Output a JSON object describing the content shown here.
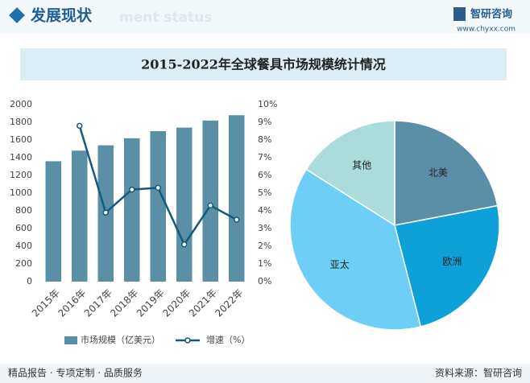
{
  "header": {
    "title": "发展现状",
    "ghost": "ment status",
    "brand": "智研咨询",
    "site": "www.chyxx.com"
  },
  "banner": "2015-2022年全球餐具市场规模统计情况",
  "chart_data": [
    {
      "type": "bar",
      "categories": [
        "2015年",
        "2016年",
        "2017年",
        "2018年",
        "2019年",
        "2020年",
        "2021年",
        "2022年"
      ],
      "series": [
        {
          "name": "市场规模（亿美元）",
          "color": "#5b8fa7",
          "values": [
            1360,
            1480,
            1540,
            1620,
            1700,
            1740,
            1820,
            1880
          ]
        },
        {
          "name": "增速（%）",
          "color": "#145a7a",
          "type": "line",
          "axis": "y2",
          "values": [
            null,
            8.8,
            3.9,
            5.2,
            5.3,
            2.1,
            4.3,
            3.5
          ]
        }
      ],
      "ylim": [
        0,
        2000
      ],
      "yticks": [
        0,
        200,
        400,
        600,
        800,
        1000,
        1200,
        1400,
        1600,
        1800,
        2000
      ],
      "y2lim": [
        0,
        10
      ],
      "y2ticks": [
        {
          "value": 0,
          "label": "0%"
        },
        {
          "value": 1,
          "label": "1%"
        },
        {
          "value": 2,
          "label": "2%"
        },
        {
          "value": 3,
          "label": "3%"
        },
        {
          "value": 4,
          "label": "4%"
        },
        {
          "value": 5,
          "label": "5%"
        },
        {
          "value": 6,
          "label": "6%"
        },
        {
          "value": 7,
          "label": "7%"
        },
        {
          "value": 8,
          "label": "8%"
        },
        {
          "value": 9,
          "label": "9%"
        },
        {
          "value": 10,
          "label": "10%"
        }
      ],
      "legend": "bottom"
    },
    {
      "type": "pie",
      "categories": [
        "北美",
        "欧洲",
        "亚太",
        "其他"
      ],
      "values": [
        22,
        24,
        38,
        16
      ],
      "colors": [
        "#5b8fa7",
        "#0ea0d8",
        "#6dcff5",
        "#a9dcdb"
      ]
    }
  ],
  "footer": {
    "left": "精品报告 · 专项定制 · 品质服务",
    "right": "资料来源：智研咨询"
  }
}
